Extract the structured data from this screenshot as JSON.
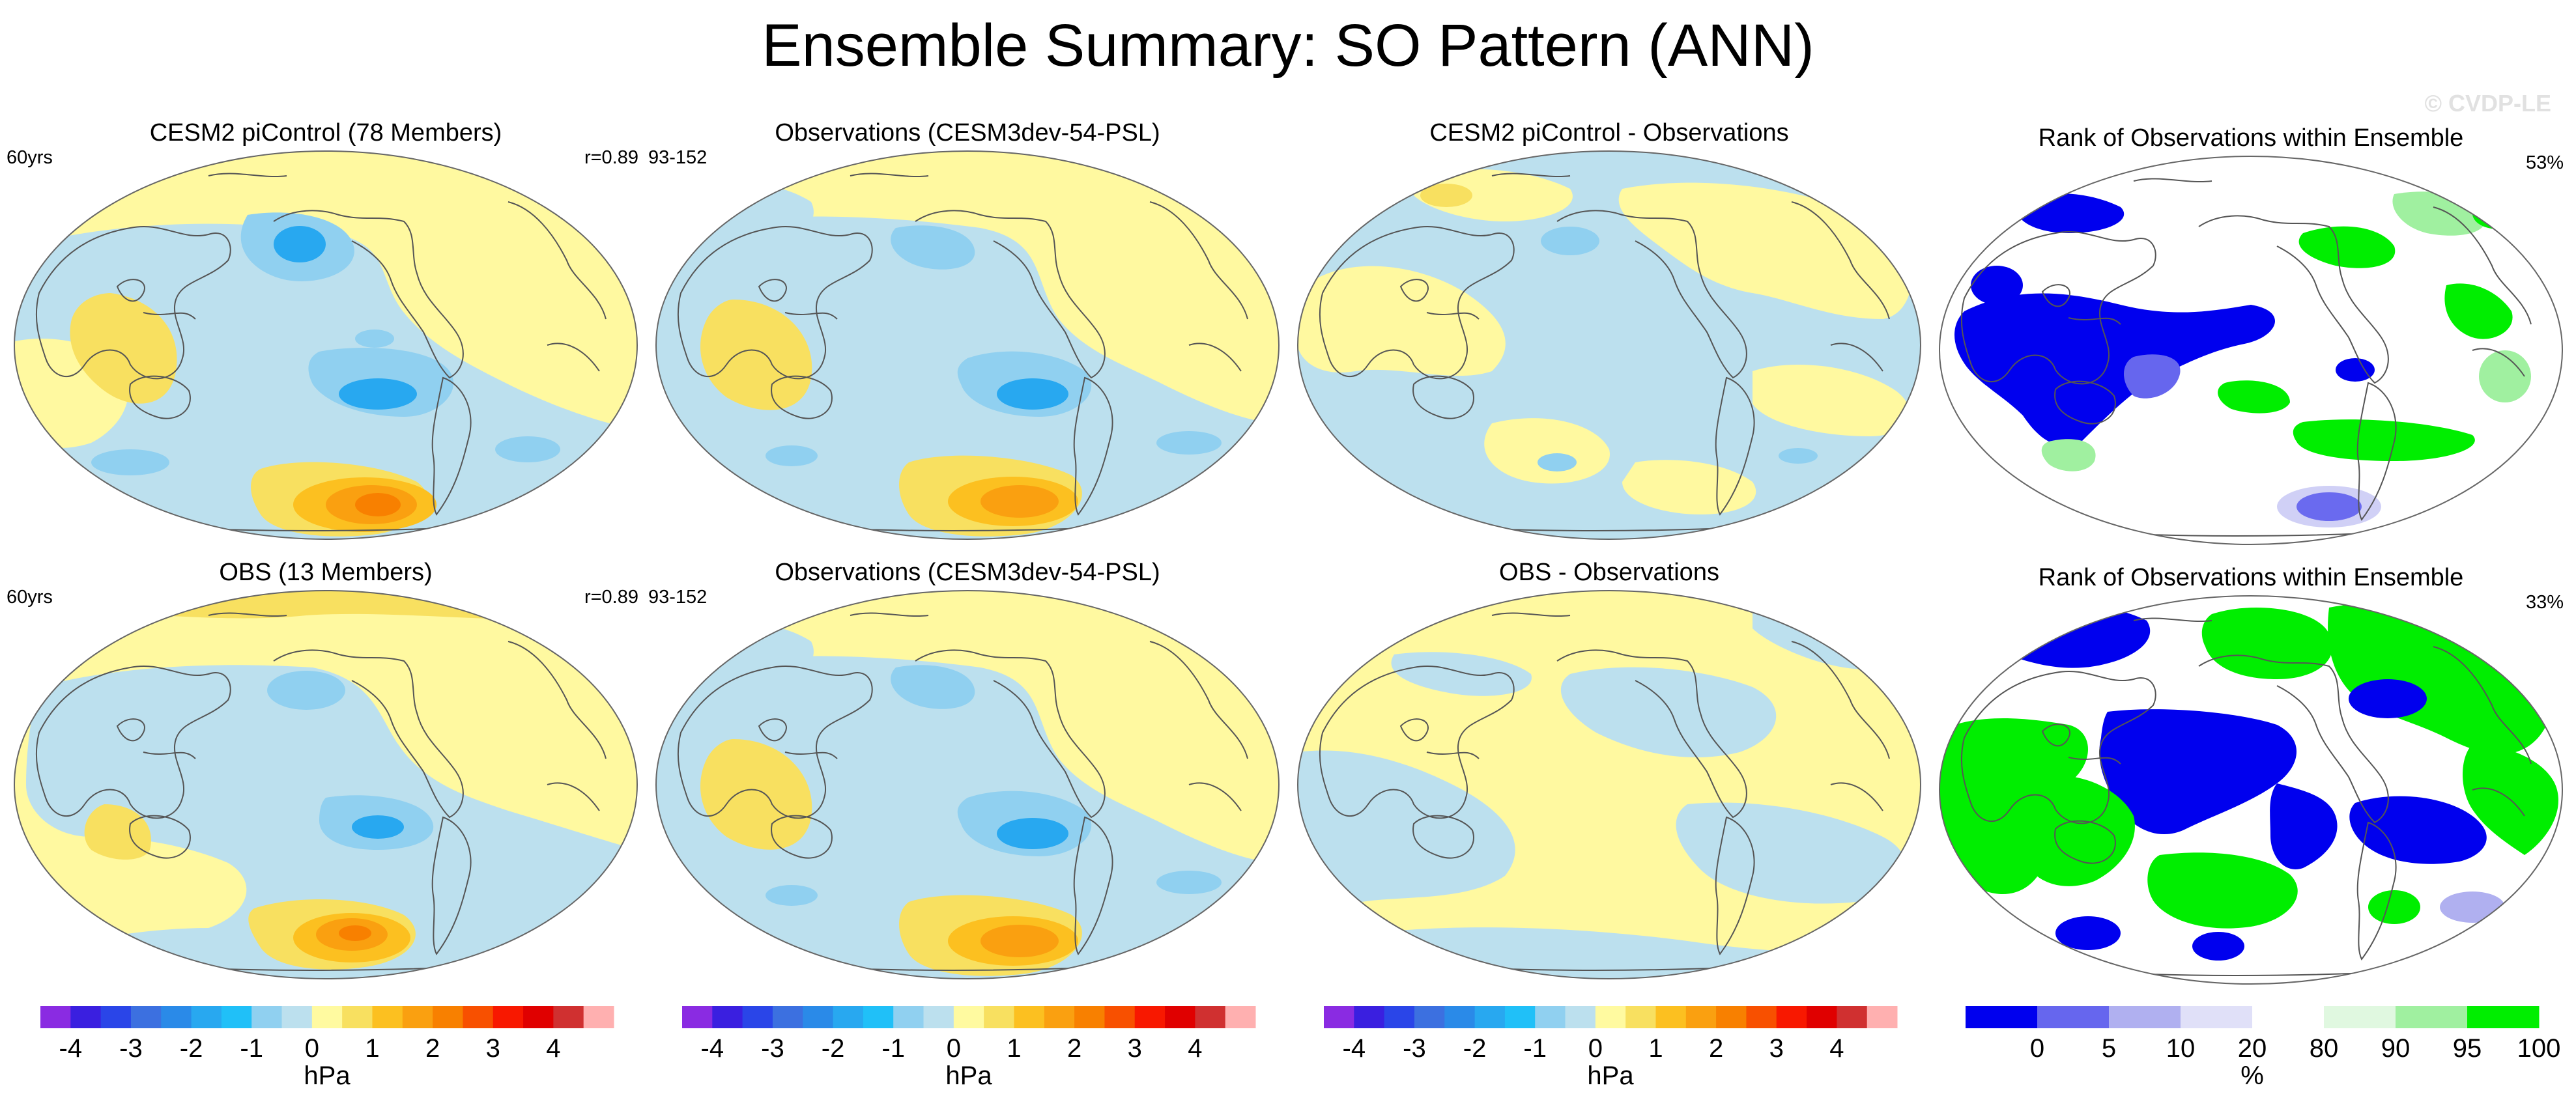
{
  "title": "Ensemble Summary: SO Pattern (ANN)",
  "copyright": "© CVDP-LE",
  "panels": [
    {
      "id": "p1",
      "title": "CESM2 piControl (78 Members)",
      "left_label": "60yrs",
      "right_label": "r=0.89",
      "style": "ens1"
    },
    {
      "id": "p2",
      "title": "Observations (CESM3dev-54-PSL)",
      "left_label": "93-152",
      "right_label": "",
      "style": "obs1"
    },
    {
      "id": "p3",
      "title": "CESM2 piControl - Observations",
      "left_label": "",
      "right_label": "",
      "style": "diff1"
    },
    {
      "id": "p4",
      "title": "Rank of Observations within Ensemble",
      "left_label": "",
      "right_label": "53%",
      "style": "rank1"
    },
    {
      "id": "p5",
      "title": "OBS (13 Members)",
      "left_label": "60yrs",
      "right_label": "r=0.89",
      "style": "ens2"
    },
    {
      "id": "p6",
      "title": "Observations (CESM3dev-54-PSL)",
      "left_label": "93-152",
      "right_label": "",
      "style": "obs1"
    },
    {
      "id": "p7",
      "title": "OBS - Observations",
      "left_label": "",
      "right_label": "",
      "style": "diff2"
    },
    {
      "id": "p8",
      "title": "Rank of Observations within Ensemble",
      "left_label": "",
      "right_label": "33%",
      "style": "rank2"
    }
  ],
  "colorbar_hpa": {
    "units": "hPa",
    "tick_labels": [
      "-4",
      "-3",
      "-2",
      "-1",
      "0",
      "1",
      "2",
      "3",
      "4"
    ],
    "colors": [
      "#8a2be2",
      "#3a1fe0",
      "#2a45e8",
      "#3c70e0",
      "#2a8ae8",
      "#28a8f0",
      "#20c0f8",
      "#90d0f0",
      "#bce0ee",
      "#fffaa0",
      "#f8e060",
      "#fcc020",
      "#faa010",
      "#f88000",
      "#f85000",
      "#f81800",
      "#e00000",
      "#d03030",
      "#ffb0b0"
    ]
  },
  "colorbar_rank": {
    "units": "%",
    "tick_labels": [
      "0",
      "5",
      "10",
      "20",
      "80",
      "90",
      "95",
      "100"
    ],
    "colors": [
      "#0000ee",
      "#6666ee",
      "#b0b0f0",
      "#e0e0f8",
      "#ffffff",
      "#e0f8e0",
      "#a0f0a0",
      "#00ee00"
    ]
  }
}
